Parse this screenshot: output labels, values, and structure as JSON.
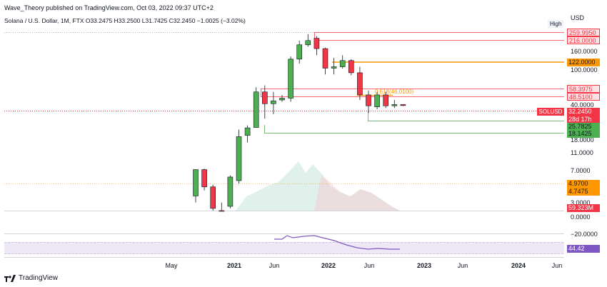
{
  "header": {
    "published": "Wave_Theory published on TradingView.com, Oct 03, 2022 09:37 UTC+2",
    "symbol_line": "Solana / U.S. Dollar, 1M, FTX  O33.2475  H33.2500  L31.7425  C32.2450  −1.0025 (−3.02%)"
  },
  "axis": {
    "currency": "USD",
    "high_label": "High",
    "ticks": [
      "160.0000",
      "100.0000",
      "40.0000",
      "18.0000",
      "11.0000",
      "7.0000",
      "3.0000",
      "0.0000",
      "−20.0000"
    ],
    "x_ticks": [
      "May",
      "2021",
      "Jun",
      "2022",
      "Jun",
      "2023",
      "Jun",
      "2024",
      "Jun"
    ]
  },
  "tags": {
    "t1": "259.9950",
    "t2": "216.0000",
    "t3": "122.0000",
    "t4": "58.3975",
    "t5": "48.5100",
    "t6": "32.2450",
    "t7": "28d 17h",
    "t8": "25.7825",
    "t9": "18.1425",
    "t10": "4.9700",
    "t11": "4.7475",
    "t12": "59.323M",
    "t13": "44.42"
  },
  "symbol_badge": "SOLUSD",
  "fib_label": "0.618(46.0100)",
  "footer": {
    "logo": "TradingView"
  },
  "colors": {
    "up": "#4caf50",
    "down": "#f23645",
    "orange": "#ff9800",
    "green_line": "#4caf50",
    "red_line": "#f23645",
    "purple": "#7e57c2"
  },
  "chart_data": {
    "type": "candlestick",
    "title": "Solana / U.S. Dollar, 1M, FTX",
    "ylabel": "USD",
    "x_ticks": [
      "May",
      "2021",
      "Jun",
      "2022",
      "Jun",
      "2023",
      "Jun",
      "2024",
      "Jun"
    ],
    "y_scale": "log",
    "horizontal_levels": [
      259.995,
      216.0,
      122.0,
      58.3975,
      48.51,
      32.245,
      25.7825,
      18.1425,
      4.97,
      4.7475
    ],
    "fib_level": {
      "label": "0.618",
      "value": 46.01
    },
    "candles": [
      {
        "o": 2.3,
        "h": 5.0,
        "l": 1.9,
        "c": 4.97,
        "dir": "up"
      },
      {
        "o": 4.97,
        "h": 5.1,
        "l": 2.7,
        "c": 3.0,
        "dir": "down"
      },
      {
        "o": 3.0,
        "h": 3.2,
        "l": 1.2,
        "c": 1.6,
        "dir": "down"
      },
      {
        "o": 1.5,
        "h": 1.9,
        "l": 1.2,
        "c": 1.5,
        "dir": "down"
      },
      {
        "o": 1.7,
        "h": 4.2,
        "l": 1.6,
        "c": 4.0,
        "dir": "up"
      },
      {
        "o": 3.6,
        "h": 16.0,
        "l": 3.3,
        "c": 13.0,
        "dir": "up"
      },
      {
        "o": 13.5,
        "h": 18.0,
        "l": 11.0,
        "c": 16.8,
        "dir": "up"
      },
      {
        "o": 17.0,
        "h": 55.0,
        "l": 17.0,
        "c": 48.0,
        "dir": "up"
      },
      {
        "o": 48.0,
        "h": 58.0,
        "l": 22.0,
        "c": 34.0,
        "dir": "down"
      },
      {
        "o": 34.0,
        "h": 48.0,
        "l": 25.0,
        "c": 37.0,
        "dir": "up"
      },
      {
        "o": 38.0,
        "h": 44.0,
        "l": 36.0,
        "c": 40.0,
        "dir": "up"
      },
      {
        "o": 40.0,
        "h": 135.0,
        "l": 36.0,
        "c": 125.0,
        "dir": "up"
      },
      {
        "o": 125.0,
        "h": 215.0,
        "l": 110.0,
        "c": 190.0,
        "dir": "up"
      },
      {
        "o": 190.0,
        "h": 260.0,
        "l": 180.0,
        "c": 215.0,
        "dir": "up"
      },
      {
        "o": 230.0,
        "h": 245.0,
        "l": 140.0,
        "c": 170.0,
        "dir": "down"
      },
      {
        "o": 170.0,
        "h": 175.0,
        "l": 80.0,
        "c": 96.0,
        "dir": "down"
      },
      {
        "o": 96.0,
        "h": 130.0,
        "l": 80.0,
        "c": 100.0,
        "dir": "up"
      },
      {
        "o": 100.0,
        "h": 140.0,
        "l": 95.0,
        "c": 120.0,
        "dir": "up"
      },
      {
        "o": 120.0,
        "h": 125.0,
        "l": 78.0,
        "c": 84.0,
        "dir": "down"
      },
      {
        "o": 84.0,
        "h": 100.0,
        "l": 38.0,
        "c": 44.0,
        "dir": "down"
      },
      {
        "o": 44.0,
        "h": 50.0,
        "l": 26.0,
        "c": 32.0,
        "dir": "down"
      },
      {
        "o": 31.0,
        "h": 48.0,
        "l": 29.0,
        "c": 44.0,
        "dir": "up"
      },
      {
        "o": 44.0,
        "h": 48.0,
        "l": 30.0,
        "c": 32.0,
        "dir": "down"
      },
      {
        "o": 32.0,
        "h": 38.0,
        "l": 30.0,
        "c": 33.2,
        "dir": "up"
      },
      {
        "o": 33.2,
        "h": 33.25,
        "l": 31.74,
        "c": 32.245,
        "dir": "down"
      }
    ],
    "volume_last": "59.323M",
    "rsi_last": 44.42
  }
}
